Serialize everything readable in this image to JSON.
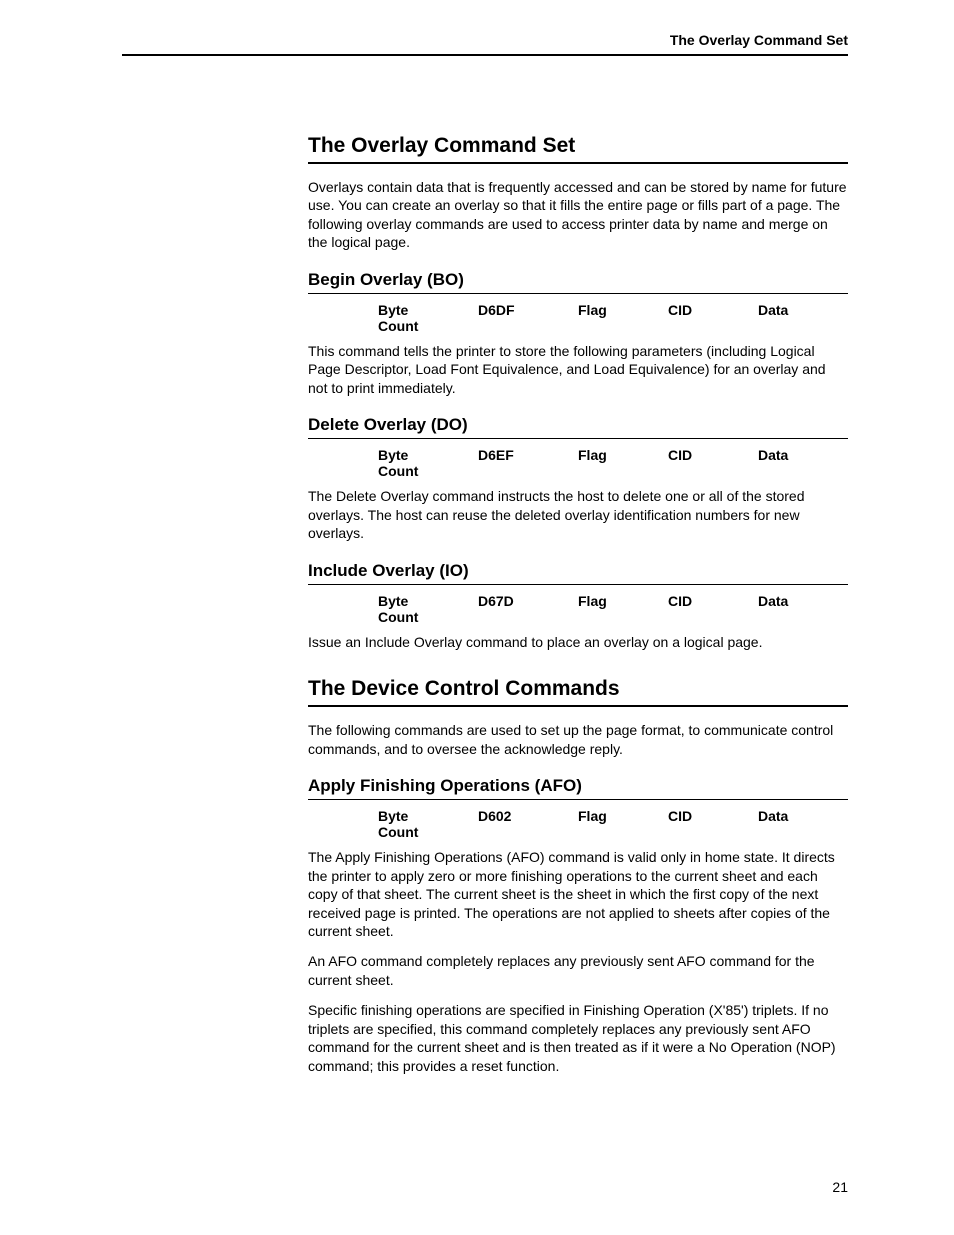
{
  "running_header": "The Overlay Command Set",
  "page_number": "21",
  "sections": {
    "overlay_set": {
      "title": "The Overlay Command Set",
      "intro": "Overlays contain data that is frequently accessed and can be stored by name for future use. You can create an overlay so that it fills the entire page or fills part of a page. The following overlay commands are used to access printer data by name and merge on the logical page.",
      "commands": {
        "bo": {
          "title": "Begin Overlay (BO)",
          "row": {
            "c1a": "Byte",
            "c1b": "Count",
            "c2": "D6DF",
            "c3": "Flag",
            "c4": "CID",
            "c5": "Data"
          },
          "text": "This command tells the printer to store the following parameters (including Logical Page Descriptor, Load Font Equivalence, and Load Equivalence) for an overlay and not to print immediately."
        },
        "do": {
          "title": "Delete Overlay (DO)",
          "row": {
            "c1a": "Byte",
            "c1b": "Count",
            "c2": "D6EF",
            "c3": "Flag",
            "c4": "CID",
            "c5": "Data"
          },
          "text": "The Delete Overlay command instructs the host to delete one or all of the stored overlays. The host can reuse the deleted overlay identification numbers for new overlays."
        },
        "io": {
          "title": "Include Overlay (IO)",
          "row": {
            "c1a": "Byte",
            "c1b": "Count",
            "c2": "D67D",
            "c3": "Flag",
            "c4": "CID",
            "c5": "Data"
          },
          "text": "Issue an Include Overlay command to place an overlay on a logical page."
        }
      }
    },
    "device_control": {
      "title": "The Device Control Commands",
      "intro": "The following commands are used to set up the page format, to communicate control commands, and to oversee the acknowledge reply.",
      "commands": {
        "afo": {
          "title": "Apply Finishing Operations (AFO)",
          "row": {
            "c1a": "Byte",
            "c1b": "Count",
            "c2": "D602",
            "c3": "Flag",
            "c4": "CID",
            "c5": "Data"
          },
          "p1": "The Apply Finishing Operations (AFO) command is valid only in home state. It directs the printer to apply zero or more finishing operations to the current sheet and each copy of that sheet. The current sheet is the sheet in which the first copy of the next received page is printed. The operations are not applied to sheets after copies of the current sheet.",
          "p2": "An AFO command completely replaces any previously sent AFO command for the current sheet.",
          "p3": "Specific finishing operations are specified in Finishing Operation (X'85') triplets. If no triplets are specified, this command completely replaces any previously sent AFO command for the current sheet and is then treated as if it were a No Operation (NOP) command; this provides a reset function."
        }
      }
    }
  }
}
